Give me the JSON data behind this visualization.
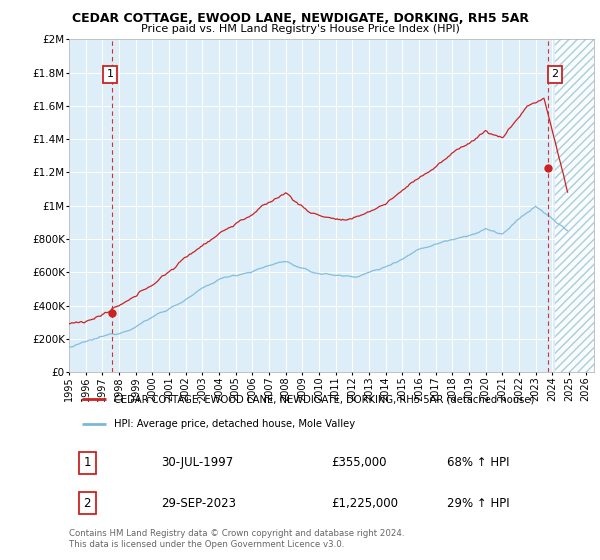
{
  "title": "CEDAR COTTAGE, EWOOD LANE, NEWDIGATE, DORKING, RH5 5AR",
  "subtitle": "Price paid vs. HM Land Registry's House Price Index (HPI)",
  "ylim": [
    0,
    2000000
  ],
  "yticks": [
    0,
    200000,
    400000,
    600000,
    800000,
    1000000,
    1200000,
    1400000,
    1600000,
    1800000,
    2000000
  ],
  "ytick_labels": [
    "£0",
    "£200K",
    "£400K",
    "£600K",
    "£800K",
    "£1M",
    "£1.2M",
    "£1.4M",
    "£1.6M",
    "£1.8M",
    "£2M"
  ],
  "xlim_start": 1995.0,
  "xlim_end": 2026.5,
  "xticks": [
    1995,
    1996,
    1997,
    1998,
    1999,
    2000,
    2001,
    2002,
    2003,
    2004,
    2005,
    2006,
    2007,
    2008,
    2009,
    2010,
    2011,
    2012,
    2013,
    2014,
    2015,
    2016,
    2017,
    2018,
    2019,
    2020,
    2021,
    2022,
    2023,
    2024,
    2025,
    2026
  ],
  "sale1_x": 1997.58,
  "sale1_y": 355000,
  "sale1_label": "1",
  "sale2_x": 2023.75,
  "sale2_y": 1225000,
  "sale2_label": "2",
  "hpi_line_color": "#7ab8d9",
  "price_line_color": "#cc2222",
  "sale_dot_color": "#cc2222",
  "vline_color": "#cc3333",
  "bg_color": "#ddeef8",
  "future_hatch_color": "#aaccdd",
  "legend_line1": "CEDAR COTTAGE, EWOOD LANE, NEWDIGATE, DORKING, RH5 5AR (detached house)",
  "legend_line2": "HPI: Average price, detached house, Mole Valley",
  "table_row1_num": "1",
  "table_row1_date": "30-JUL-1997",
  "table_row1_price": "£355,000",
  "table_row1_hpi": "68% ↑ HPI",
  "table_row2_num": "2",
  "table_row2_date": "29-SEP-2023",
  "table_row2_price": "£1,225,000",
  "table_row2_hpi": "29% ↑ HPI",
  "footer": "Contains HM Land Registry data © Crown copyright and database right 2024.\nThis data is licensed under the Open Government Licence v3.0."
}
